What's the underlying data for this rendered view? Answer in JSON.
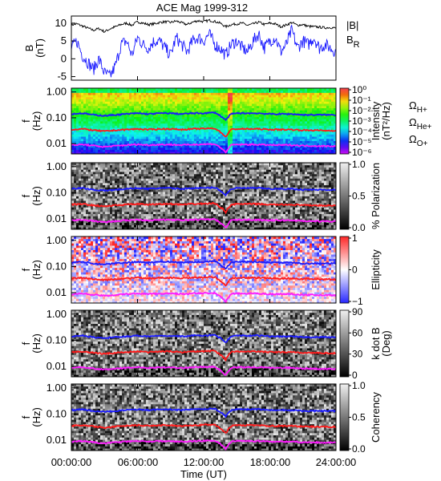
{
  "title": "ACE Mag 1999-312",
  "x_axis": {
    "label": "Time (UT)",
    "ticks": [
      "00:00:00",
      "06:00:00",
      "12:00:00",
      "18:00:00",
      "24:00:00"
    ],
    "tick_hours": [
      0,
      6,
      12,
      18,
      24
    ],
    "range_hours": [
      0,
      24
    ]
  },
  "legend": {
    "B_mag": {
      "label": "|B|",
      "color": "#000000"
    },
    "B_R": {
      "label": "B",
      "sub": "R",
      "color": "#1a1aff"
    },
    "omega_H": {
      "label": "Ω",
      "sub": "H+",
      "color": "#1a1aff"
    },
    "omega_He": {
      "label": "Ω",
      "sub": "He+",
      "color": "#ff1a1a"
    },
    "omega_O": {
      "label": "Ω",
      "sub": "O+",
      "color": "#ff1aff"
    }
  },
  "chart_data": [
    {
      "type": "line",
      "ylabel": [
        "B",
        "(nT)"
      ],
      "ylim": [
        -6,
        12
      ],
      "yticks": [
        10,
        5,
        0,
        -5
      ],
      "xlim": [
        0,
        24
      ],
      "series": [
        {
          "name": "|B|",
          "color": "#000000",
          "x": [
            0,
            0.5,
            1,
            1.5,
            2,
            2.5,
            3,
            3.5,
            4,
            4.5,
            5,
            5.5,
            6,
            6.5,
            7,
            7.5,
            8,
            8.5,
            9,
            9.5,
            10,
            10.5,
            11,
            11.5,
            12,
            12.5,
            13,
            13.5,
            14,
            14.5,
            15,
            15.5,
            16,
            16.5,
            17,
            17.5,
            18,
            18.5,
            19,
            19.5,
            20,
            20.5,
            21,
            21.5,
            22,
            22.5,
            23,
            23.5,
            24
          ],
          "y": [
            9.5,
            9.8,
            9.2,
            8.6,
            8.0,
            8.5,
            7.6,
            8.4,
            9.0,
            9.6,
            10.0,
            9.4,
            10.4,
            10.0,
            9.6,
            9.8,
            10.2,
            10.4,
            10.2,
            10.6,
            10.1,
            9.6,
            10.3,
            10.7,
            10.4,
            10.8,
            10.5,
            10.0,
            9.0,
            9.6,
            9.8,
            10.0,
            9.4,
            9.8,
            10.3,
            9.6,
            10.0,
            9.8,
            9.0,
            9.5,
            10.2,
            9.4,
            9.6,
            9.1,
            9.0,
            8.9,
            8.7,
            8.8,
            8.6
          ]
        },
        {
          "name": "B_R",
          "color": "#1a1aff",
          "x": [
            0,
            0.5,
            1,
            1.5,
            2,
            2.5,
            3,
            3.5,
            4,
            4.5,
            5,
            5.5,
            6,
            6.5,
            7,
            7.5,
            8,
            8.5,
            9,
            9.5,
            10,
            10.5,
            11,
            11.5,
            12,
            12.5,
            13,
            13.5,
            14,
            14.5,
            15,
            15.5,
            16,
            16.5,
            17,
            17.5,
            18,
            18.5,
            19,
            19.5,
            20,
            20.5,
            21,
            21.5,
            22,
            22.5,
            23,
            23.5,
            24
          ],
          "y": [
            3,
            5,
            1,
            -1,
            -3,
            0,
            -4,
            -5,
            -2,
            4,
            5,
            1,
            6,
            4,
            3,
            5,
            5,
            3,
            1,
            6,
            4,
            2,
            5,
            6,
            5,
            7,
            4,
            3,
            1,
            4,
            5,
            3,
            2,
            5,
            7,
            3,
            5,
            6,
            2,
            4,
            8,
            3,
            5,
            4,
            6,
            3,
            4,
            3,
            2
          ]
        }
      ]
    },
    {
      "type": "heatmap",
      "ylabel": [
        "f",
        "(Hz)"
      ],
      "yscale": "log",
      "ylim": [
        0.004,
        1.4
      ],
      "yticks": [
        "1.00",
        "0.10",
        "0.01"
      ],
      "colorbar": {
        "label": [
          "Intensity",
          "(nT²/Hz)"
        ],
        "palette": "rainbow",
        "ticks": [
          "10⁰",
          "10⁻¹",
          "10⁻²",
          "10⁻³",
          "10⁻⁴",
          "10⁻⁵",
          "10⁻⁶"
        ],
        "range": [
          1e-06,
          1
        ]
      }
    },
    {
      "type": "heatmap",
      "ylabel": [
        "f",
        "(Hz)"
      ],
      "yscale": "log",
      "ylim": [
        0.004,
        1.4
      ],
      "yticks": [
        "1.00",
        "0.10",
        "0.01"
      ],
      "colorbar": {
        "label": [
          "% Polarization"
        ],
        "palette": "gray",
        "ticks": [
          "1.0",
          "0.5",
          "0.0"
        ],
        "range": [
          0,
          1
        ]
      }
    },
    {
      "type": "heatmap",
      "ylabel": [
        "f",
        "(Hz)"
      ],
      "yscale": "log",
      "ylim": [
        0.004,
        1.4
      ],
      "yticks": [
        "1.00",
        "0.10",
        "0.01"
      ],
      "colorbar": {
        "label": [
          "Ellipticity"
        ],
        "palette": "bwr",
        "ticks": [
          "1",
          "0",
          "−1"
        ],
        "range": [
          -1,
          1
        ]
      }
    },
    {
      "type": "heatmap",
      "ylabel": [
        "f",
        "(Hz)"
      ],
      "yscale": "log",
      "ylim": [
        0.004,
        1.4
      ],
      "yticks": [
        "1.00",
        "0.10",
        "0.01"
      ],
      "colorbar": {
        "label": [
          "k dot B",
          "(Deg)"
        ],
        "palette": "gray",
        "ticks": [
          "90",
          "60",
          "30",
          "0"
        ],
        "range": [
          0,
          90
        ]
      }
    },
    {
      "type": "heatmap",
      "ylabel": [
        "f",
        "(Hz)"
      ],
      "yscale": "log",
      "ylim": [
        0.004,
        1.4
      ],
      "yticks": [
        "1.00",
        "0.10",
        "0.01"
      ],
      "colorbar": {
        "label": [
          "Coherency"
        ],
        "palette": "gray",
        "ticks": [
          "1.0",
          "0.5",
          "0.0"
        ],
        "range": [
          0,
          1
        ]
      }
    }
  ],
  "gyrofrequency_lines": [
    {
      "name": "Ω_H+",
      "color": "#1a1aff",
      "x": [
        0,
        1,
        2,
        3,
        4,
        5,
        6,
        7,
        8,
        9,
        10,
        11,
        12,
        13,
        14,
        14.5,
        15,
        16,
        17,
        18,
        19,
        20,
        21,
        22,
        23,
        24
      ],
      "y": [
        0.14,
        0.15,
        0.13,
        0.12,
        0.13,
        0.14,
        0.15,
        0.14,
        0.15,
        0.15,
        0.14,
        0.15,
        0.15,
        0.16,
        0.08,
        0.14,
        0.15,
        0.15,
        0.15,
        0.14,
        0.14,
        0.14,
        0.13,
        0.13,
        0.13,
        0.13
      ]
    },
    {
      "name": "Ω_He+",
      "color": "#ff1a1a",
      "x": [
        0,
        1,
        2,
        3,
        4,
        5,
        6,
        7,
        8,
        9,
        10,
        11,
        12,
        13,
        14,
        14.5,
        15,
        16,
        17,
        18,
        19,
        20,
        21,
        22,
        23,
        24
      ],
      "y": [
        0.035,
        0.037,
        0.033,
        0.03,
        0.033,
        0.035,
        0.037,
        0.035,
        0.037,
        0.037,
        0.035,
        0.037,
        0.038,
        0.039,
        0.018,
        0.035,
        0.037,
        0.037,
        0.037,
        0.035,
        0.035,
        0.035,
        0.033,
        0.033,
        0.032,
        0.032
      ]
    },
    {
      "name": "Ω_O+",
      "color": "#ff1aff",
      "x": [
        0,
        1,
        2,
        3,
        4,
        5,
        6,
        7,
        8,
        9,
        10,
        11,
        12,
        13,
        14,
        14.5,
        15,
        16,
        17,
        18,
        19,
        20,
        21,
        22,
        23,
        24
      ],
      "y": [
        0.0088,
        0.0092,
        0.0083,
        0.0075,
        0.0082,
        0.0088,
        0.0093,
        0.0088,
        0.0092,
        0.0092,
        0.0088,
        0.0092,
        0.0095,
        0.0097,
        0.0045,
        0.0088,
        0.0092,
        0.0092,
        0.0092,
        0.0088,
        0.0088,
        0.0088,
        0.0083,
        0.0082,
        0.008,
        0.008
      ]
    }
  ]
}
